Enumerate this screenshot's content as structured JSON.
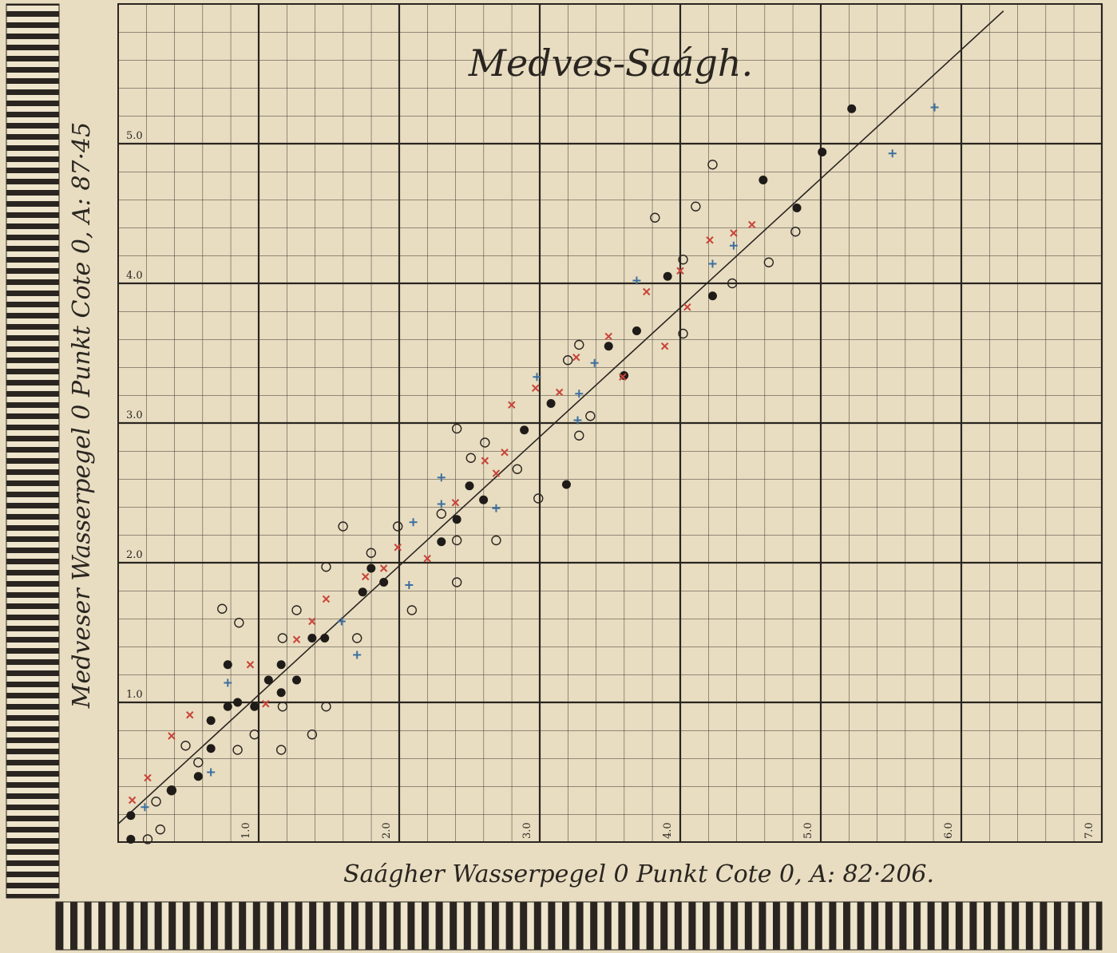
{
  "chart_data": {
    "type": "scatter",
    "title": "Medves-Saágh.",
    "x_label": "Saágher Wasserpegel 0 Punkt Cote 0, A: 82·206.",
    "y_label": "Medveser Wasserpegel 0 Punkt Cote 0, A: 87·45",
    "xlim": [
      0,
      7
    ],
    "ylim": [
      0,
      6
    ],
    "xticks": [
      {
        "value": 1,
        "label": "1.0"
      },
      {
        "value": 2,
        "label": "2.0"
      },
      {
        "value": 3,
        "label": "3.0"
      },
      {
        "value": 4,
        "label": "4.0"
      },
      {
        "value": 5,
        "label": "5.0"
      },
      {
        "value": 6,
        "label": "6.0"
      },
      {
        "value": 7,
        "label": "7.0"
      }
    ],
    "yticks": [
      {
        "value": 1,
        "label": "1.0"
      },
      {
        "value": 2,
        "label": "2.0"
      },
      {
        "value": 3,
        "label": "3.0"
      },
      {
        "value": 4,
        "label": "4.0"
      },
      {
        "value": 5,
        "label": "5.0"
      }
    ],
    "grid": true,
    "line": {
      "color": "#2a2520",
      "x": [
        0,
        6.3
      ],
      "y": [
        0.13,
        5.95
      ]
    },
    "series": [
      {
        "marker": "circle-open",
        "color": "#2a2520",
        "x": [
          3.82,
          4.23,
          4.11,
          4.82,
          4.63,
          4.37,
          4.02,
          4.02,
          3.28,
          3.2,
          3.28,
          3.36,
          2.99,
          2.84,
          2.41,
          2.61,
          2.51,
          2.3,
          2.41,
          2.69,
          1.6,
          1.99,
          1.8,
          1.48,
          2.41,
          2.09,
          1.27,
          0.74,
          0.86,
          1.17,
          1.7,
          1.17,
          1.48,
          0.97,
          1.38,
          0.85,
          0.48,
          0.38,
          0.27,
          0.3,
          0.21,
          1.16,
          0.57
        ],
        "y": [
          4.47,
          4.85,
          4.55,
          4.37,
          4.15,
          4.0,
          3.64,
          4.17,
          3.56,
          3.45,
          2.91,
          3.05,
          2.46,
          2.67,
          2.96,
          2.86,
          2.75,
          2.35,
          2.16,
          2.16,
          2.26,
          2.26,
          2.07,
          1.97,
          1.86,
          1.66,
          1.66,
          1.67,
          1.57,
          1.46,
          1.46,
          0.97,
          0.97,
          0.77,
          0.77,
          0.66,
          0.69,
          0.37,
          0.29,
          0.09,
          0.02,
          0.66,
          0.57
        ]
      },
      {
        "marker": "circle-filled",
        "color": "#1f1b18",
        "x": [
          5.22,
          5.01,
          4.59,
          4.83,
          4.23,
          3.91,
          3.69,
          3.49,
          3.6,
          3.08,
          2.89,
          3.19,
          2.5,
          2.6,
          2.41,
          2.3,
          1.8,
          1.89,
          1.74,
          1.47,
          1.38,
          1.16,
          1.07,
          1.16,
          1.27,
          0.97,
          0.78,
          0.78,
          0.85,
          0.66,
          0.66,
          0.57,
          0.38,
          0.09,
          0.09
        ],
        "y": [
          5.25,
          4.94,
          4.74,
          4.54,
          3.91,
          4.05,
          3.66,
          3.55,
          3.34,
          3.14,
          2.95,
          2.56,
          2.55,
          2.45,
          2.31,
          2.15,
          1.96,
          1.86,
          1.79,
          1.46,
          1.46,
          1.27,
          1.16,
          1.07,
          1.16,
          0.97,
          1.27,
          0.97,
          1.0,
          0.87,
          0.67,
          0.47,
          0.37,
          0.19,
          0.02
        ]
      },
      {
        "marker": "cross-x",
        "color": "#c8453a",
        "x": [
          4.51,
          4.21,
          4.38,
          4.0,
          3.76,
          4.05,
          3.89,
          3.49,
          3.26,
          3.59,
          2.97,
          3.14,
          2.8,
          2.75,
          2.61,
          2.69,
          2.4,
          2.2,
          1.99,
          1.89,
          1.76,
          1.48,
          1.38,
          1.27,
          0.94,
          1.05,
          0.51,
          0.38,
          0.21,
          0.1
        ],
        "y": [
          4.42,
          4.31,
          4.36,
          4.09,
          3.94,
          3.83,
          3.55,
          3.62,
          3.47,
          3.33,
          3.25,
          3.22,
          3.13,
          2.79,
          2.73,
          2.64,
          2.43,
          2.03,
          2.11,
          1.96,
          1.9,
          1.74,
          1.58,
          1.45,
          1.27,
          0.99,
          0.91,
          0.76,
          0.46,
          0.3
        ]
      },
      {
        "marker": "plus",
        "color": "#3b6fa0",
        "x": [
          5.81,
          5.51,
          3.69,
          4.38,
          4.23,
          3.39,
          3.28,
          2.98,
          3.27,
          2.3,
          2.3,
          2.69,
          2.1,
          2.07,
          1.59,
          1.7,
          0.78,
          0.66,
          0.19
        ],
        "y": [
          5.26,
          4.93,
          4.02,
          4.27,
          4.14,
          3.43,
          3.21,
          3.33,
          3.02,
          2.61,
          2.42,
          2.39,
          2.29,
          1.84,
          1.58,
          1.34,
          1.14,
          0.5,
          0.25
        ]
      }
    ]
  }
}
